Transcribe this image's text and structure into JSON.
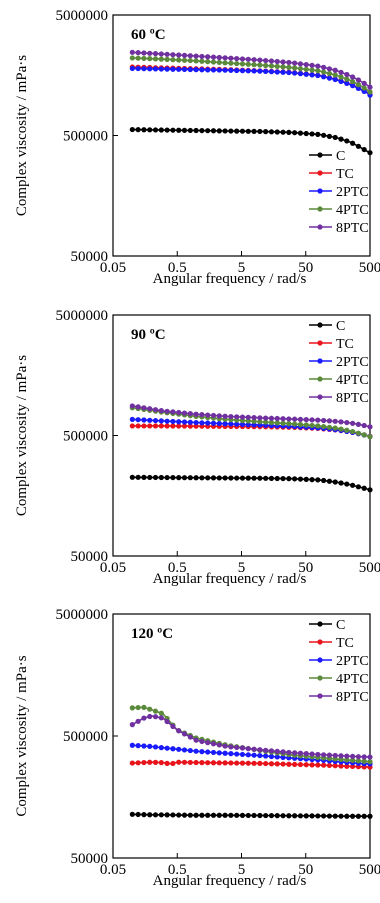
{
  "chart_data": [
    {
      "type": "line",
      "annotation": "60 ºC",
      "xlabel": "Angular frequency / rad/s",
      "ylabel": "Complex viscosity / mPa·s",
      "xscale": "log",
      "yscale": "log",
      "xlim": [
        0.05,
        500
      ],
      "ylim": [
        50000,
        5000000
      ],
      "xticks": [
        "0.05",
        "0.5",
        "5",
        "50",
        "500"
      ],
      "yticks": [
        "5000000",
        "500000",
        "50000"
      ],
      "legend_position": "bottom-right",
      "series": [
        {
          "name": "C",
          "color": "#000000",
          "x": [
            0.1,
            0.3,
            1,
            3,
            10,
            30,
            80,
            150,
            250,
            350,
            450,
            500
          ],
          "y": [
            560000,
            555000,
            550000,
            545000,
            540000,
            530000,
            510000,
            480000,
            440000,
            400000,
            370000,
            360000
          ]
        },
        {
          "name": "TC",
          "color": "#e8141b",
          "x": [
            0.1,
            0.3,
            1,
            3,
            10,
            30,
            80,
            150,
            250,
            350,
            450,
            500
          ],
          "y": [
            1850000,
            1820000,
            1790000,
            1760000,
            1720000,
            1670000,
            1580000,
            1460000,
            1330000,
            1220000,
            1140000,
            1100000
          ]
        },
        {
          "name": "2PTC",
          "color": "#1a1aff",
          "x": [
            0.1,
            0.3,
            1,
            3,
            10,
            30,
            80,
            150,
            250,
            350,
            450,
            500
          ],
          "y": [
            1800000,
            1780000,
            1760000,
            1740000,
            1710000,
            1660000,
            1570000,
            1450000,
            1320000,
            1210000,
            1130000,
            1080000
          ]
        },
        {
          "name": "4PTC",
          "color": "#5b8a3a",
          "x": [
            0.1,
            0.3,
            1,
            3,
            10,
            30,
            80,
            150,
            250,
            350,
            450,
            500
          ],
          "y": [
            2200000,
            2150000,
            2080000,
            2000000,
            1920000,
            1830000,
            1720000,
            1580000,
            1430000,
            1300000,
            1200000,
            1150000
          ]
        },
        {
          "name": "8PTC",
          "color": "#7030a0",
          "x": [
            0.1,
            0.3,
            1,
            3,
            10,
            30,
            80,
            150,
            250,
            350,
            450,
            500
          ],
          "y": [
            2450000,
            2370000,
            2280000,
            2200000,
            2110000,
            2010000,
            1880000,
            1730000,
            1560000,
            1420000,
            1310000,
            1260000
          ]
        }
      ]
    },
    {
      "type": "line",
      "annotation": "90 ºC",
      "xlabel": "Angular frequency / rad/s",
      "ylabel": "Complex viscosity / mPa·s",
      "xscale": "log",
      "yscale": "log",
      "xlim": [
        0.05,
        500
      ],
      "ylim": [
        50000,
        5000000
      ],
      "xticks": [
        "0.05",
        "0.5",
        "5",
        "50",
        "500"
      ],
      "yticks": [
        "5000000",
        "500000",
        "50000"
      ],
      "legend_position": "top-right",
      "series": [
        {
          "name": "C",
          "color": "#000000",
          "x": [
            0.1,
            0.3,
            1,
            3,
            10,
            30,
            80,
            150,
            250,
            350,
            450,
            500
          ],
          "y": [
            225000,
            224000,
            223000,
            222000,
            221000,
            219000,
            214000,
            205000,
            195000,
            186000,
            180000,
            177000
          ]
        },
        {
          "name": "TC",
          "color": "#e8141b",
          "x": [
            0.1,
            0.3,
            1,
            3,
            10,
            30,
            80,
            150,
            250,
            350,
            450,
            500
          ],
          "y": [
            600000,
            600000,
            598000,
            595000,
            592000,
            585000,
            572000,
            555000,
            535000,
            515000,
            500000,
            492000
          ]
        },
        {
          "name": "2PTC",
          "color": "#1a1aff",
          "x": [
            0.1,
            0.3,
            1,
            3,
            10,
            30,
            80,
            150,
            250,
            350,
            450,
            500
          ],
          "y": [
            680000,
            660000,
            640000,
            625000,
            610000,
            595000,
            578000,
            558000,
            535000,
            515000,
            498000,
            490000
          ]
        },
        {
          "name": "4PTC",
          "color": "#5b8a3a",
          "x": [
            0.1,
            0.3,
            1,
            3,
            10,
            30,
            80,
            150,
            250,
            350,
            450,
            500
          ],
          "y": [
            850000,
            780000,
            720000,
            680000,
            650000,
            625000,
            600000,
            575000,
            545000,
            518000,
            498000,
            488000
          ]
        },
        {
          "name": "8PTC",
          "color": "#7030a0",
          "x": [
            0.1,
            0.3,
            1,
            3,
            10,
            30,
            80,
            150,
            250,
            350,
            450,
            500
          ],
          "y": [
            880000,
            800000,
            750000,
            720000,
            700000,
            685000,
            670000,
            655000,
            635000,
            615000,
            598000,
            590000
          ]
        }
      ]
    },
    {
      "type": "line",
      "annotation": "120 ºC",
      "xlabel": "Angular frequency / rad/s",
      "ylabel": "Complex viscosity / mPa·s",
      "xscale": "log",
      "yscale": "log",
      "xlim": [
        0.05,
        500
      ],
      "ylim": [
        50000,
        5000000
      ],
      "xticks": [
        "0.05",
        "0.5",
        "5",
        "50",
        "500"
      ],
      "yticks": [
        "5000000",
        "500000",
        "50000"
      ],
      "legend_position": "top-right",
      "series": [
        {
          "name": "C",
          "color": "#000000",
          "x": [
            0.1,
            0.2,
            0.3,
            0.5,
            1,
            3,
            10,
            30,
            100,
            200,
            350,
            500
          ],
          "y": [
            114000,
            113000,
            113000,
            112500,
            112000,
            112000,
            111500,
            111000,
            110500,
            110000,
            110000,
            110000
          ]
        },
        {
          "name": "TC",
          "color": "#e8141b",
          "x": [
            0.1,
            0.2,
            0.3,
            0.4,
            0.5,
            1,
            3,
            10,
            30,
            100,
            200,
            350,
            500
          ],
          "y": [
            300000,
            305000,
            302000,
            295000,
            305000,
            303000,
            301000,
            298000,
            293000,
            288000,
            283000,
            280000,
            278000
          ]
        },
        {
          "name": "2PTC",
          "color": "#1a1aff",
          "x": [
            0.1,
            0.2,
            0.3,
            0.5,
            1,
            3,
            10,
            30,
            100,
            200,
            350,
            500
          ],
          "y": [
            420000,
            410000,
            400000,
            390000,
            375000,
            360000,
            345000,
            330000,
            315000,
            305000,
            298000,
            295000
          ]
        },
        {
          "name": "4PTC",
          "color": "#5b8a3a",
          "x": [
            0.1,
            0.15,
            0.2,
            0.3,
            0.5,
            1,
            3,
            10,
            30,
            100,
            200,
            350,
            500
          ],
          "y": [
            850000,
            860000,
            820000,
            760000,
            560000,
            480000,
            420000,
            380000,
            350000,
            330000,
            320000,
            312000,
            308000
          ]
        },
        {
          "name": "8PTC",
          "color": "#7030a0",
          "x": [
            0.1,
            0.15,
            0.2,
            0.3,
            0.5,
            1,
            3,
            10,
            30,
            100,
            200,
            350,
            500
          ],
          "y": [
            620000,
            700000,
            730000,
            700000,
            560000,
            460000,
            410000,
            385000,
            365000,
            350000,
            343000,
            338000,
            336000
          ]
        }
      ]
    }
  ]
}
